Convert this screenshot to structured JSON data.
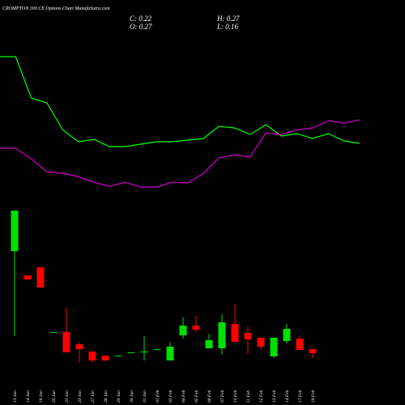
{
  "header": {
    "title": "CROMPTON 300 CE Options Chart MunafaSutra.com",
    "close": "C: 0.22",
    "high": "H: 0.27",
    "open": "O: 0.27",
    "low": "L: 0.16"
  },
  "chart_data": [
    {
      "type": "line",
      "ylim": [
        0,
        1
      ],
      "series": [
        {
          "color": "#00ff00",
          "values": [
            0.9,
            0.9,
            0.645,
            0.615,
            0.45,
            0.375,
            0.39,
            0.345,
            0.345,
            0.36,
            0.375,
            0.375,
            0.385,
            0.395,
            0.47,
            0.46,
            0.42,
            0.48,
            0.41,
            0.425,
            0.395,
            0.425,
            0.38,
            0.365
          ]
        },
        {
          "color": "#cc00cc",
          "values": [
            0.335,
            0.335,
            0.27,
            0.19,
            0.18,
            0.16,
            0.125,
            0.1,
            0.125,
            0.095,
            0.095,
            0.125,
            0.12,
            0.18,
            0.275,
            0.295,
            0.28,
            0.43,
            0.42,
            0.45,
            0.46,
            0.505,
            0.49,
            0.51
          ]
        }
      ]
    },
    {
      "type": "candlestick",
      "ylim": [
        0,
        2
      ],
      "up_color": "#00e000",
      "down_color": "#ff0000",
      "categories": [
        "13 Jan",
        "14 Jan",
        "16 Jan",
        "20 Jan",
        "21 Jan",
        "23 Jan",
        "27 Jan",
        "28 Jan",
        "29 Jan",
        "30 Jan",
        "31 Jan",
        "01 Feb",
        "03 Feb",
        "04 Feb",
        "05 Feb",
        "06 Feb",
        "07 Feb",
        "10 Feb",
        "11 Feb",
        "12 Feb",
        "13 Feb",
        "14 Feb",
        "17 Feb",
        "18 Feb"
      ],
      "open": [
        1.48,
        1.18,
        1.28,
        0.47,
        0.48,
        0.33,
        0.24,
        0.19,
        0.18,
        0.22,
        0.23,
        0.26,
        0.13,
        0.44,
        0.56,
        0.28,
        0.28,
        0.58,
        0.47,
        0.41,
        0.18,
        0.37,
        0.4,
        0.27
      ],
      "high": [
        1.98,
        1.18,
        1.28,
        0.48,
        0.78,
        0.36,
        0.24,
        0.19,
        0.19,
        0.23,
        0.43,
        0.27,
        0.36,
        0.66,
        0.68,
        0.46,
        0.7,
        0.83,
        0.55,
        0.41,
        0.41,
        0.58,
        0.44,
        0.27
      ],
      "low": [
        0.43,
        1.13,
        1.03,
        0.47,
        0.23,
        0.1,
        0.1,
        0.13,
        0.18,
        0.22,
        0.13,
        0.26,
        0.13,
        0.4,
        0.48,
        0.28,
        0.2,
        0.36,
        0.21,
        0.26,
        0.16,
        0.34,
        0.26,
        0.16
      ],
      "close": [
        1.98,
        1.13,
        1.03,
        0.48,
        0.23,
        0.27,
        0.13,
        0.13,
        0.19,
        0.23,
        0.24,
        0.27,
        0.3,
        0.56,
        0.51,
        0.38,
        0.6,
        0.36,
        0.39,
        0.3,
        0.41,
        0.52,
        0.26,
        0.22
      ]
    }
  ]
}
